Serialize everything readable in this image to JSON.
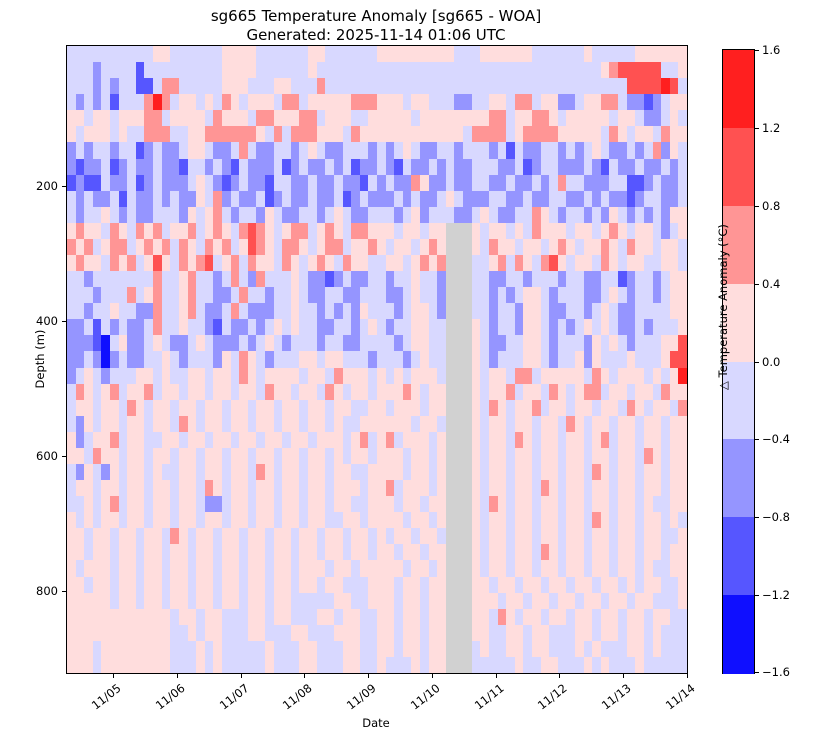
{
  "chart_data": {
    "type": "heatmap",
    "title": "sg665 Temperature Anomaly [sg665 - WOA]",
    "subtitle": "Generated: 2025-11-14 01:06 UTC",
    "xlabel": "Date",
    "ylabel": "Depth (m)",
    "colorbar_label": "△ Temperature Anomaly (°C)",
    "x_tick_labels": [
      "11/05",
      "11/06",
      "11/07",
      "11/08",
      "11/09",
      "11/10",
      "11/11",
      "11/12",
      "11/13",
      "11/14"
    ],
    "y_tick_labels": [
      "200",
      "400",
      "600",
      "800"
    ],
    "y_tick_depths_m": [
      200,
      400,
      600,
      800
    ],
    "depth_axis_range_m": [
      8,
      935
    ],
    "colorbar_tick_labels": [
      "1.6",
      "1.2",
      "0.8",
      "0.4",
      "0.0",
      "−0.4",
      "−0.8",
      "−1.2",
      "−1.6"
    ],
    "colorbar_levels_degC": [
      -1.6,
      -1.2,
      -0.8,
      -0.4,
      0.0,
      0.4,
      0.8,
      1.2,
      1.6
    ],
    "grid": false,
    "legend_position": "right-colorbar",
    "palette": {
      "B": "#0f0fff",
      "b": "#5656ff",
      "m": "#9595ff",
      "l": "#d8d8ff",
      "p": "#ffdddd",
      "s": "#ff9595",
      "r": "#ff5151",
      "R": "#ff1f1f",
      "g": "#d1d1d1"
    },
    "anomaly_bins_degC": {
      "B": [
        -1.6,
        -1.2
      ],
      "b": [
        -1.2,
        -0.8
      ],
      "m": [
        -0.8,
        -0.4
      ],
      "l": [
        -0.4,
        0.0
      ],
      "p": [
        0.0,
        0.4
      ],
      "s": [
        0.4,
        0.8
      ],
      "r": [
        0.8,
        1.2
      ],
      "R": [
        1.2,
        1.6
      ],
      "g": "missing data"
    },
    "colorbar_band_order_top_to_bottom": [
      "R",
      "r",
      "s",
      "p",
      "l",
      "m",
      "b",
      "B"
    ],
    "missing_data_note": "gray vertical band near 11/10-11/11 below ~260 m",
    "cell_grid": {
      "n_cols": 72,
      "n_rows": 39,
      "approx_depth_bin_m": 25,
      "rows": [
        "llllllllllppllllllppppllllllppllllllppppppppplllppppppllllllplllllpppppp",
        "lllmllllblllllllllppppllllllplllllllllllllllllllllllllllllllllpsrrrrrllpp",
        "lllmlmllbblsslllllppplllpplllslllllllllllllllllllllllllllllllllllrrrrRrlps",
        "lmlmlblllsRslpplplsplppplsslpppppsssppplpplllmmllpplsslppmmlppsslmmbmlpp",
        "pplpplpppsslpppplsppplsspppsslpppllppppplppppppppsslppssplppppplpplmmlpl",
        "plppplpllsssllppssssssplslsssppplspppppppppppplsssslpssssppppplsplpplspp",
        "mlmllmllbmlmmlpplmmlslmmllmlplmmlllmlmlplmmllmlllmlblmmllmlmlplmmlmlsmpl",
        "mbmmlbmlmmlmmbllmlmblmmmlbmlmmlmlbmmlmblmmlmlmmlllmmlbmllmmmlmblmmlmmlml",
        "bmbblmmlbmlmmmlplmbmlmmbllmmlmmlmmblmlmmspmmlmmllmmlmmlmlsllmmmllbbmlmml",
        "lmlmmlblmmlmlmmplsmlmmlbmlmmlmmlbmlmmmlmlmmlplmmmllmmlmmllmmlmlmmbmllmml",
        "lmllplmlmmlllmplpslmllmplmmllmlplmmlllmlpmlllmmlplmmllsplmllmlmplmlmlmpp",
        "pspplsplspslppslpsplsrsplpsslpsplssppplpplppgggplpplplsppplpplpsplpplmlp",
        "spslpsslpspslsplspslprsplssplpsslppsplpplpspgggplspplpplpsplppsplspplppl",
        "pspplspslprplspsrlpslspplsplpsplsppllpplpspsgggllpslsplsrplpplsplppllppl",
        "llmlllllllsllpsllmlslmslllplmmbmlmmllmllpllmgggllmmllmlllmllmmllbmllmlpp",
        "lllmlllslpsllpsllmmlsllmllplmmllmmlllmmlpllmgggllmlmlpplmlllmmlplmllmlpp",
        "llmllpllmmsllpslmmlslmmmllpllmlmlmplllmlpplmgggllmllmpplmmllmlplmmllllpp",
        "mmlblmlmmlsllpllmblmmlmlplpllmmllmlplmllppllgggplmllmpplmlmlplplmmlmlllp",
        "mmmbBlpmmlplmmlplmmmlmlplmlllmllmmllllmlppllgggplmmllpplmlllmplplmlllppr",
        "mmlmBmlmmllplmlllmplsplmlllpplpplllmlllmlpllgggplmlllpplmllpmplllplllprr",
        "mlplmlllpplpllpplpplsplpppplpplsppplplplppplgggplpplsslppppplsplppplplpR",
        "lsplpslppslpplpplpplpplspplpplsplpplpppsplppgggplppslpplsplpsslpplpplspp",
        "lpplpplsplpplpplpplpplpplpplpplppllpplppplppgggplsplppslpplpplpplsplppls",
        "lmplpplpplpplsplpplpplpplpplpplpllpppppplpplgggplpplpplpplsplpplpplpplpp",
        "pmlppslppllpplpplpplpplpplpplppplpslpslppplpgggplpplsplpplpplpslpplpplpp",
        "pplspplpplpplpplpplpplpplpplpplplpplppplpplpgggplpplpplpplpplpplpplsplpp",
        "lmplmplpplpllpplpplpplsplpplpplppllpppplpplpgggplpplpplpplpplsplpplpplpp",
        "lpplpplpplpplpplsplpplpplpplpplppplppslppplpgggplpplpplsplpplpplpplpplpp",
        "llplpslpplpplpplmmlpplpplpplpplppllppplpplppgggplsplpplpplpplpplpplpllpp",
        "plplpplpplpplpplpplpplpplpplppllpplpppplpplpgggplpplpplpplpplsplpplpplpl",
        "pplpplpplpplsplpplpplpplpplpplpplpplplpplpplgggplpplpplpplpplpplpplppllp",
        "pplpplpplpplpplpplpplpplpplpplpplpplpplpplppgggplpplpplsplpplpplpplpplpp",
        "plppplpplpplpplpplpplpplpplppplpplppppplpplpgggplpplpplpplpplpplpplpllpp",
        "pplpplpplpplpplpplpplpplpplpplpplllppplpplppgggpplpplpplpplpplpplplppllp",
        "ppppplpplpplpplpplpplpplpplllllppllppplpplppgggppplpplpplpplpplpplpplllp",
        "pppppppppppplpplpplllpplpplllpplppllpplpplppgggpplsplpplpplpplpplpplppll",
        "ppppppppppppllplpplllpplllpplllpppllpplpplppgggppllpplpplllpplpplpplplll",
        "ppplpppppppplllplplllllplllpplllppllpplpplppggglpllpplpplllplplllpplplll",
        "ppplpppppppplllplplllllplllpplllppllplllplppggglllllpllpplllplplllplllll"
      ]
    }
  }
}
